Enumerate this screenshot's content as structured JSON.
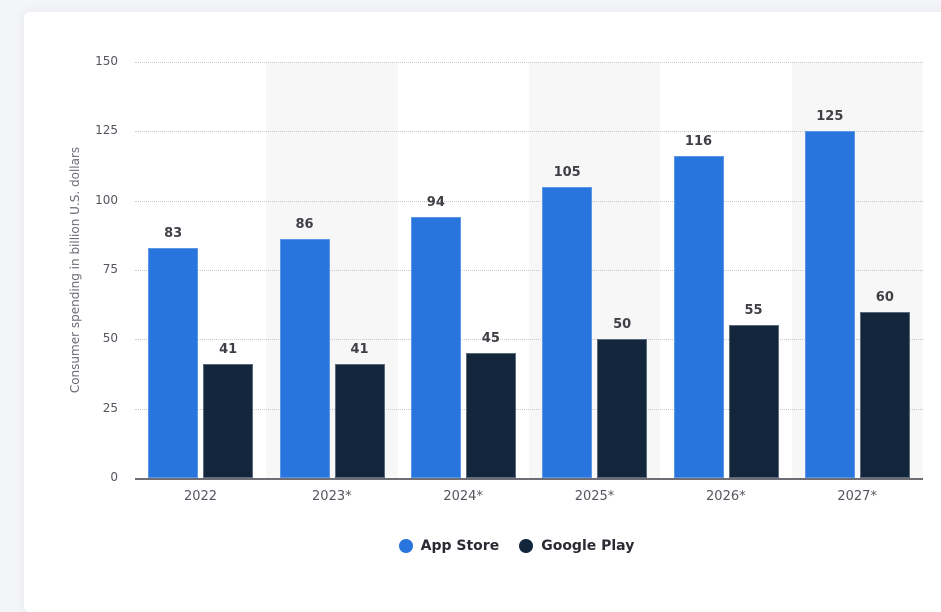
{
  "chart_data": {
    "type": "bar",
    "title": "",
    "xlabel": "",
    "ylabel": "Consumer spending in billion U.S. dollars",
    "ylim": [
      0,
      150
    ],
    "yticks": [
      0,
      25,
      50,
      75,
      100,
      125,
      150
    ],
    "grid": true,
    "legend_position": "bottom",
    "categories": [
      "2022",
      "2023*",
      "2024*",
      "2025*",
      "2026*",
      "2027*"
    ],
    "series": [
      {
        "name": "App Store",
        "color": "#2876dd",
        "values": [
          83,
          86,
          94,
          105,
          116,
          125
        ]
      },
      {
        "name": "Google Play",
        "color": "#13263b",
        "values": [
          41,
          41,
          45,
          50,
          55,
          60
        ]
      }
    ]
  },
  "yaxis": {
    "label": "Consumer spending in billion U.S. dollars",
    "ticks": [
      "0",
      "25",
      "50",
      "75",
      "100",
      "125",
      "150"
    ]
  },
  "xaxis": {
    "categories": [
      "2022",
      "2023*",
      "2024*",
      "2025*",
      "2026*",
      "2027*"
    ]
  },
  "labels": {
    "app": [
      "83",
      "86",
      "94",
      "105",
      "116",
      "125"
    ],
    "gp": [
      "41",
      "41",
      "45",
      "50",
      "55",
      "60"
    ]
  },
  "legend": {
    "items": [
      {
        "label": "App Store",
        "color": "#2876dd"
      },
      {
        "label": "Google Play",
        "color": "#13263b"
      }
    ]
  }
}
